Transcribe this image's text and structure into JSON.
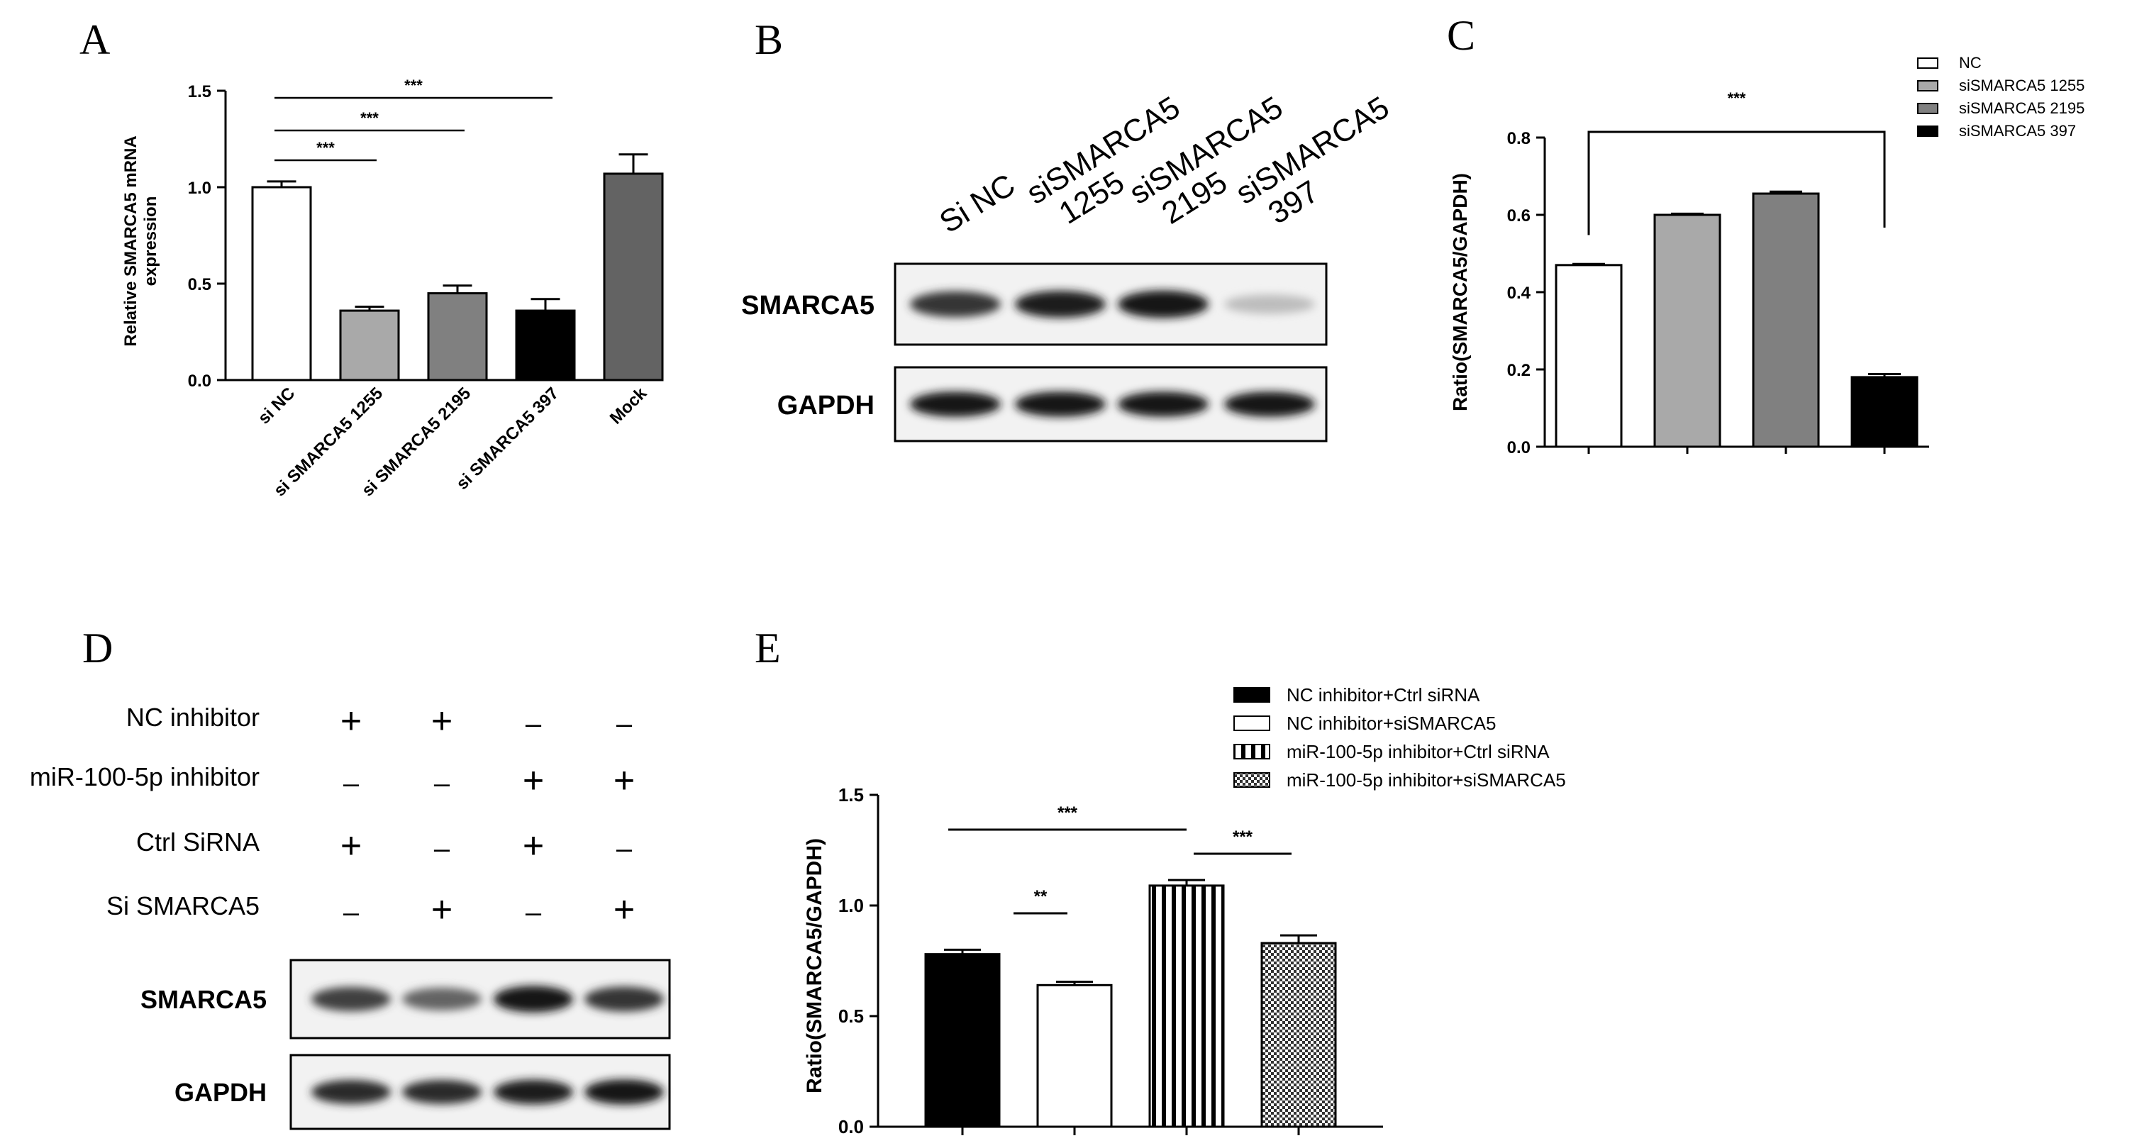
{
  "panels": {
    "a": "A",
    "b": "B",
    "c": "C",
    "d": "D",
    "e": "E"
  },
  "chart_data": [
    {
      "panel": "A",
      "type": "bar",
      "ylabel": "Relative SMARCA5 mRNA expression",
      "ylabel_lines": [
        "Relative SMARCA5 mRNA",
        "expression"
      ],
      "xlabel": "",
      "ylim": [
        0,
        1.5
      ],
      "yticks": [
        "0.0",
        "0.5",
        "1.0",
        "1.5"
      ],
      "categories": [
        "si NC",
        "si SMARCA5 1255",
        "si SMARCA5 2195",
        "si SMARCA5 397",
        "Mock"
      ],
      "values": [
        1.0,
        0.36,
        0.45,
        0.36,
        1.07
      ],
      "errors": [
        0.03,
        0.02,
        0.04,
        0.06,
        0.1
      ],
      "colors": [
        "#ffffff",
        "#a9a9a9",
        "#808080",
        "#000000",
        "#636363"
      ],
      "significance": [
        {
          "from": 0,
          "to": 1,
          "label": "***"
        },
        {
          "from": 0,
          "to": 2,
          "label": "***"
        },
        {
          "from": 0,
          "to": 3,
          "label": "***"
        }
      ]
    },
    {
      "panel": "C",
      "type": "bar",
      "ylabel": "Ratio(SMARCA5/GAPDH)",
      "xlabel": "",
      "ylim": [
        0,
        0.8
      ],
      "yticks": [
        "0.0",
        "0.2",
        "0.4",
        "0.6",
        "0.8"
      ],
      "series": [
        {
          "name": "NC",
          "value": 0.47,
          "error": 0.003,
          "color": "#ffffff"
        },
        {
          "name": "siSMARCA5 1255",
          "value": 0.6,
          "error": 0.003,
          "color": "#a9a9a9"
        },
        {
          "name": "siSMARCA5 2195",
          "value": 0.655,
          "error": 0.005,
          "color": "#808080"
        },
        {
          "name": "siSMARCA5 397",
          "value": 0.18,
          "error": 0.008,
          "color": "#000000"
        }
      ],
      "legend": "top-right",
      "significance": [
        {
          "from": 0,
          "to": 3,
          "label": "***"
        }
      ]
    },
    {
      "panel": "E",
      "type": "bar",
      "ylabel": "Ratio(SMARCA5/GAPDH)",
      "xlabel": "",
      "ylim": [
        0,
        1.5
      ],
      "yticks": [
        "0.0",
        "0.5",
        "1.0",
        "1.5"
      ],
      "series": [
        {
          "name": "NC inhibitor+Ctrl siRNA",
          "value": 0.78,
          "error": 0.02,
          "fill": "solid-black"
        },
        {
          "name": "NC inhibitor+siSMARCA5",
          "value": 0.64,
          "error": 0.015,
          "fill": "white"
        },
        {
          "name": "miR-100-5p inhibitor+Ctrl siRNA",
          "value": 1.09,
          "error": 0.025,
          "fill": "vertical-stripes"
        },
        {
          "name": "miR-100-5p inhibitor+siSMARCA5",
          "value": 0.83,
          "error": 0.035,
          "fill": "checker"
        }
      ],
      "legend": "top",
      "significance": [
        {
          "from": 0,
          "to": 1,
          "label": "**"
        },
        {
          "from": 0,
          "to": 2,
          "label": "***"
        },
        {
          "from": 2,
          "to": 3,
          "label": "***"
        }
      ]
    }
  ],
  "blot_b": {
    "lanes": [
      [
        "Si NC"
      ],
      [
        "siSMARCA5",
        "1255"
      ],
      [
        "siSMARCA5",
        "2195"
      ],
      [
        "siSMARCA5",
        "397"
      ]
    ],
    "rows": [
      {
        "label": "SMARCA5",
        "intensity": [
          0.85,
          0.95,
          1.0,
          0.25
        ]
      },
      {
        "label": "GAPDH",
        "intensity": [
          1.0,
          1.0,
          1.0,
          1.0
        ]
      }
    ]
  },
  "blot_d": {
    "conditions": [
      {
        "label": "NC inhibitor",
        "marks": [
          "+",
          "+",
          "–",
          "–"
        ]
      },
      {
        "label": "miR-100-5p inhibitor",
        "marks": [
          "–",
          "–",
          "+",
          "+"
        ]
      },
      {
        "label": "Ctrl SiRNA",
        "marks": [
          "+",
          "–",
          "+",
          "–"
        ]
      },
      {
        "label": "Si SMARCA5",
        "marks": [
          "–",
          "+",
          "–",
          "+"
        ]
      }
    ],
    "rows": [
      {
        "label": "SMARCA5",
        "intensity": [
          0.8,
          0.65,
          1.0,
          0.85
        ]
      },
      {
        "label": "GAPDH",
        "intensity": [
          0.9,
          0.9,
          0.95,
          1.0
        ]
      }
    ]
  }
}
